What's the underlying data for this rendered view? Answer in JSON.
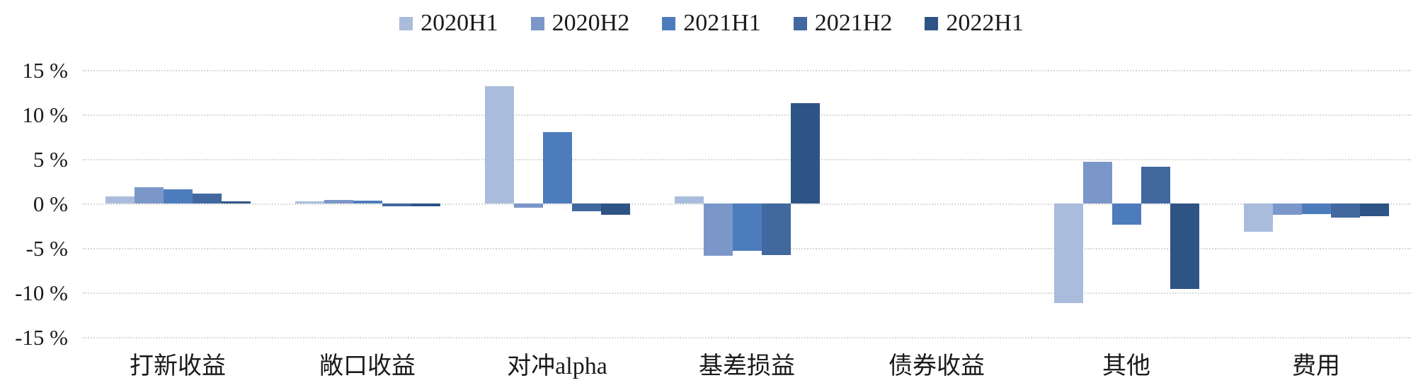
{
  "chart_data": {
    "type": "bar",
    "title": "",
    "xlabel": "",
    "ylabel": "",
    "unit": "%",
    "categories": [
      "打新收益",
      "敞口收益",
      "对冲alpha",
      "基差损益",
      "债券收益",
      "其他",
      "费用"
    ],
    "series": [
      {
        "name": "2020H1",
        "color": "#a9bcdb",
        "values": [
          0.8,
          0.2,
          13.2,
          0.8,
          0,
          -11.2,
          -3.2
        ]
      },
      {
        "name": "2020H2",
        "color": "#7b96c9",
        "values": [
          1.8,
          0.4,
          -0.5,
          -5.9,
          0,
          4.7,
          -1.3
        ]
      },
      {
        "name": "2021H1",
        "color": "#4d7cbc",
        "values": [
          1.6,
          0.3,
          8.0,
          -5.3,
          0,
          -2.4,
          -1.2
        ]
      },
      {
        "name": "2021H2",
        "color": "#41689f",
        "values": [
          1.1,
          -0.3,
          -0.9,
          -5.8,
          0,
          4.1,
          -1.6
        ]
      },
      {
        "name": "2022H1",
        "color": "#2e5486",
        "values": [
          0.2,
          -0.3,
          -1.3,
          11.3,
          0,
          -9.6,
          -1.4
        ]
      }
    ],
    "y_axis": {
      "tick_labels": [
        "15 %",
        "10 %",
        "5 %",
        "0 %",
        "-5 %",
        "-10 %",
        "-15 %"
      ],
      "tick_values": [
        15,
        10,
        5,
        0,
        -5,
        -10,
        -15
      ],
      "min": -15,
      "max": 15
    },
    "legend_position": "top",
    "grid": "horizontal",
    "gridline_color": "#d8d8d8"
  }
}
